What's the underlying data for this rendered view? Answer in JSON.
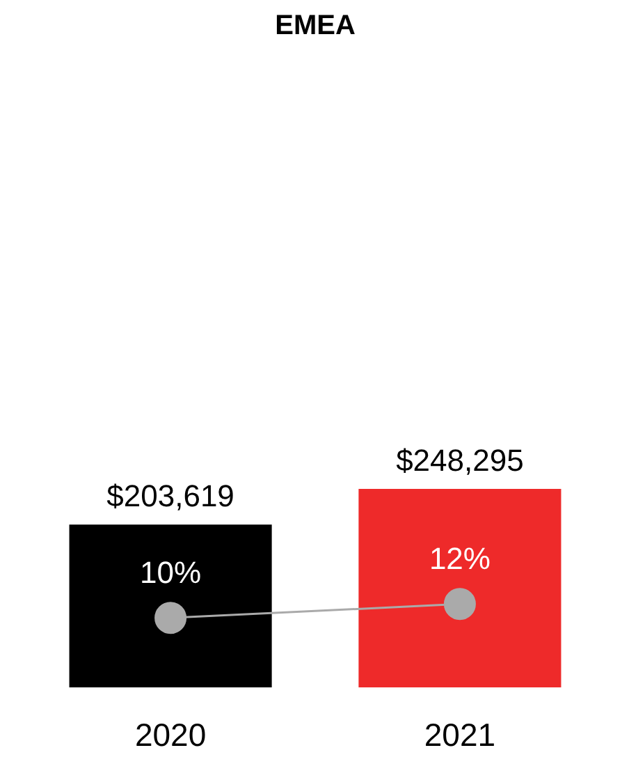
{
  "chart_data": {
    "type": "bar",
    "title": "EMEA",
    "categories": [
      "2020",
      "2021"
    ],
    "series": [
      {
        "colors": [
          "#000000",
          "#ee2a2a"
        ],
        "values": [
          203619,
          248295
        ],
        "value_labels": [
          "$203,619",
          "$248,295"
        ]
      },
      {
        "type": "line",
        "axis": "y2",
        "color": "#aaaaaa",
        "marker": "circle",
        "values": [
          10,
          12
        ],
        "value_labels": [
          "10%",
          "12%"
        ]
      }
    ],
    "tick_labels": "x",
    "grid": false
  }
}
